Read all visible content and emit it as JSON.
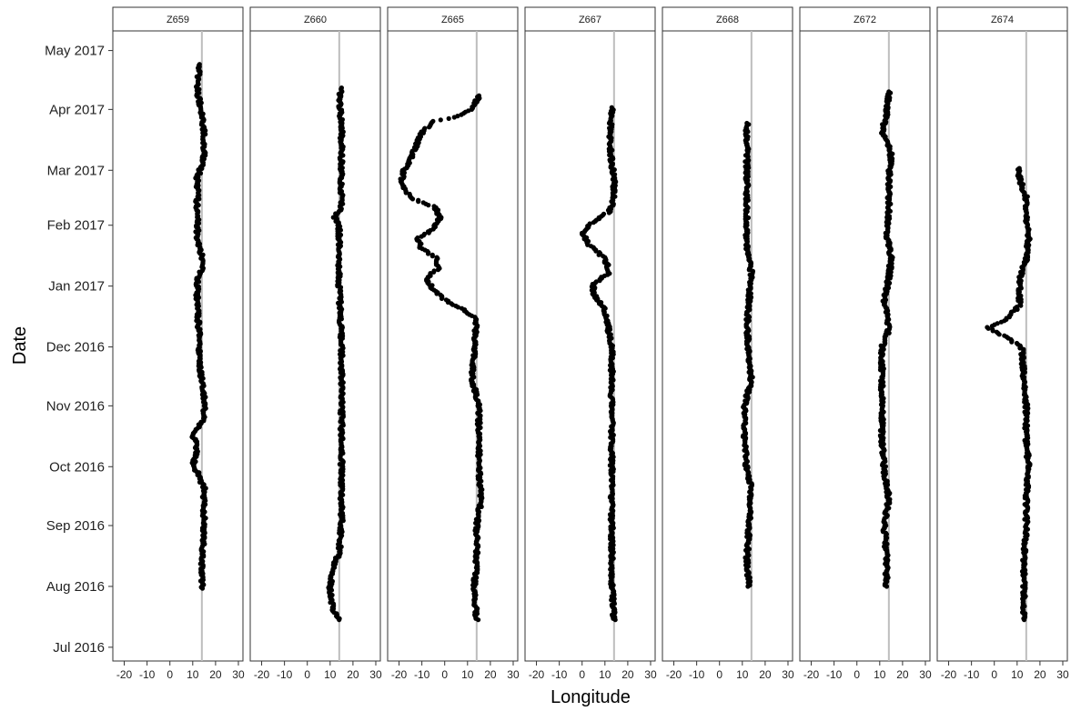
{
  "chart_data": {
    "type": "scatter",
    "facet_by": "tag",
    "xlabel": "Longitude",
    "ylabel": "Date",
    "xlim": [
      -25,
      32
    ],
    "x_ticks": [
      -20,
      -10,
      0,
      10,
      20,
      30
    ],
    "y_ticks": [
      "Jul 2016",
      "Aug 2016",
      "Sep 2016",
      "Oct 2016",
      "Nov 2016",
      "Dec 2016",
      "Jan 2017",
      "Feb 2017",
      "Mar 2017",
      "Apr 2017",
      "May 2017"
    ],
    "ylim": [
      "2016-06-24",
      "2017-05-11"
    ],
    "reference_line": {
      "x": 14,
      "color": "#bebebe"
    },
    "point_color": "#000000",
    "grid": false,
    "legend": "none",
    "panels": [
      {
        "name": "Z659",
        "track": [
          [
            "2016-07-31",
            14
          ],
          [
            "2016-08-15",
            14
          ],
          [
            "2016-09-01",
            15
          ],
          [
            "2016-09-20",
            15
          ],
          [
            "2016-09-28",
            12
          ],
          [
            "2016-10-01",
            10
          ],
          [
            "2016-10-10",
            12
          ],
          [
            "2016-10-18",
            10
          ],
          [
            "2016-10-25",
            15
          ],
          [
            "2016-11-08",
            15
          ],
          [
            "2016-11-20",
            13
          ],
          [
            "2016-12-05",
            13
          ],
          [
            "2016-12-20",
            12
          ],
          [
            "2017-01-05",
            12
          ],
          [
            "2017-01-12",
            15
          ],
          [
            "2017-01-25",
            12
          ],
          [
            "2017-02-10",
            12
          ],
          [
            "2017-02-25",
            12
          ],
          [
            "2017-03-08",
            15
          ],
          [
            "2017-03-20",
            15
          ],
          [
            "2017-03-31",
            14
          ],
          [
            "2017-04-10",
            12
          ],
          [
            "2017-04-24",
            13
          ]
        ]
      },
      {
        "name": "Z660",
        "track": [
          [
            "2016-07-15",
            14
          ],
          [
            "2016-07-20",
            11
          ],
          [
            "2016-08-01",
            10
          ],
          [
            "2016-08-10",
            11
          ],
          [
            "2016-08-18",
            14
          ],
          [
            "2016-09-01",
            15
          ],
          [
            "2016-10-01",
            15
          ],
          [
            "2016-11-01",
            15
          ],
          [
            "2016-12-01",
            15
          ],
          [
            "2017-01-01",
            14
          ],
          [
            "2017-02-01",
            14
          ],
          [
            "2017-02-05",
            12
          ],
          [
            "2017-02-10",
            15
          ],
          [
            "2017-03-01",
            15
          ],
          [
            "2017-03-25",
            15
          ],
          [
            "2017-04-05",
            14
          ],
          [
            "2017-04-12",
            15
          ]
        ]
      },
      {
        "name": "Z665",
        "track": [
          [
            "2016-07-15",
            14
          ],
          [
            "2016-08-01",
            13
          ],
          [
            "2016-08-15",
            14
          ],
          [
            "2016-09-01",
            14
          ],
          [
            "2016-09-15",
            16
          ],
          [
            "2016-10-01",
            15
          ],
          [
            "2016-11-01",
            15
          ],
          [
            "2016-11-15",
            12
          ],
          [
            "2016-12-01",
            13
          ],
          [
            "2016-12-15",
            14
          ],
          [
            "2016-12-20",
            8
          ],
          [
            "2016-12-25",
            0
          ],
          [
            "2016-12-30",
            -5
          ],
          [
            "2017-01-05",
            -8
          ],
          [
            "2017-01-10",
            -3
          ],
          [
            "2017-01-15",
            -3
          ],
          [
            "2017-01-20",
            -10
          ],
          [
            "2017-01-25",
            -12
          ],
          [
            "2017-01-30",
            -5
          ],
          [
            "2017-02-05",
            -2
          ],
          [
            "2017-02-10",
            -4
          ],
          [
            "2017-02-15",
            -15
          ],
          [
            "2017-02-22",
            -19
          ],
          [
            "2017-03-01",
            -18
          ],
          [
            "2017-03-06",
            -15
          ],
          [
            "2017-03-12",
            -13
          ],
          [
            "2017-03-20",
            -10
          ],
          [
            "2017-03-26",
            -5
          ],
          [
            "2017-03-28",
            5
          ],
          [
            "2017-04-01",
            12
          ],
          [
            "2017-04-08",
            15
          ]
        ]
      },
      {
        "name": "Z667",
        "track": [
          [
            "2016-07-15",
            14
          ],
          [
            "2016-08-01",
            13
          ],
          [
            "2016-09-01",
            13
          ],
          [
            "2016-10-01",
            13
          ],
          [
            "2016-11-01",
            13
          ],
          [
            "2016-12-01",
            13
          ],
          [
            "2016-12-20",
            10
          ],
          [
            "2016-12-28",
            5
          ],
          [
            "2017-01-02",
            5
          ],
          [
            "2017-01-08",
            12
          ],
          [
            "2017-01-15",
            10
          ],
          [
            "2017-01-22",
            3
          ],
          [
            "2017-01-28",
            0
          ],
          [
            "2017-02-03",
            5
          ],
          [
            "2017-02-08",
            12
          ],
          [
            "2017-02-15",
            14
          ],
          [
            "2017-02-25",
            14
          ],
          [
            "2017-03-05",
            13
          ],
          [
            "2017-03-20",
            12
          ],
          [
            "2017-03-30",
            13
          ],
          [
            "2017-04-02",
            13
          ]
        ]
      },
      {
        "name": "Z668",
        "track": [
          [
            "2016-08-01",
            13
          ],
          [
            "2016-08-15",
            12
          ],
          [
            "2016-09-01",
            13
          ],
          [
            "2016-09-20",
            14
          ],
          [
            "2016-09-28",
            12
          ],
          [
            "2016-10-15",
            11
          ],
          [
            "2016-11-01",
            11
          ],
          [
            "2016-11-15",
            14
          ],
          [
            "2016-11-25",
            13
          ],
          [
            "2016-12-10",
            12
          ],
          [
            "2016-12-25",
            13
          ],
          [
            "2017-01-08",
            14
          ],
          [
            "2017-01-20",
            12
          ],
          [
            "2017-02-01",
            12
          ],
          [
            "2017-02-15",
            12
          ],
          [
            "2017-03-01",
            12
          ],
          [
            "2017-03-15",
            12
          ],
          [
            "2017-03-25",
            12
          ]
        ]
      },
      {
        "name": "Z672",
        "track": [
          [
            "2016-08-01",
            13
          ],
          [
            "2016-08-15",
            13
          ],
          [
            "2016-09-01",
            12
          ],
          [
            "2016-09-15",
            14
          ],
          [
            "2016-09-28",
            12
          ],
          [
            "2016-10-15",
            11
          ],
          [
            "2016-11-01",
            11
          ],
          [
            "2016-11-15",
            11
          ],
          [
            "2016-12-01",
            11
          ],
          [
            "2016-12-10",
            14
          ],
          [
            "2016-12-25",
            12
          ],
          [
            "2017-01-05",
            14
          ],
          [
            "2017-01-15",
            15
          ],
          [
            "2017-01-28",
            13
          ],
          [
            "2017-02-10",
            14
          ],
          [
            "2017-02-25",
            14
          ],
          [
            "2017-03-10",
            15
          ],
          [
            "2017-03-20",
            11
          ],
          [
            "2017-03-30",
            13
          ],
          [
            "2017-04-10",
            14
          ]
        ]
      },
      {
        "name": "Z674",
        "track": [
          [
            "2016-07-15",
            13
          ],
          [
            "2016-08-01",
            13
          ],
          [
            "2016-08-15",
            13
          ],
          [
            "2016-09-01",
            14
          ],
          [
            "2016-09-15",
            14
          ],
          [
            "2016-10-01",
            15
          ],
          [
            "2016-10-15",
            14
          ],
          [
            "2016-11-01",
            14
          ],
          [
            "2016-11-15",
            13
          ],
          [
            "2016-12-01",
            12
          ],
          [
            "2016-12-08",
            2
          ],
          [
            "2016-12-11",
            -3
          ],
          [
            "2016-12-15",
            5
          ],
          [
            "2016-12-22",
            11
          ],
          [
            "2017-01-05",
            11
          ],
          [
            "2017-01-15",
            14
          ],
          [
            "2017-01-25",
            15
          ],
          [
            "2017-02-05",
            14
          ],
          [
            "2017-02-15",
            14
          ],
          [
            "2017-02-25",
            11
          ],
          [
            "2017-03-02",
            11
          ]
        ]
      }
    ]
  }
}
